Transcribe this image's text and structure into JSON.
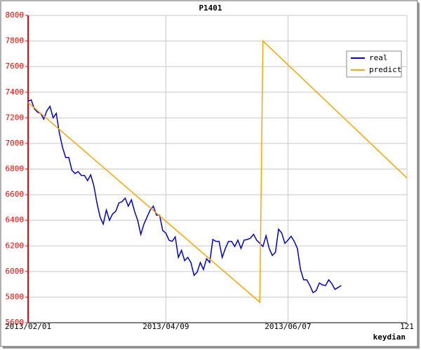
{
  "chart_data": {
    "type": "line",
    "title": "P1401",
    "xlabel": "keydian",
    "xlim": [
      0,
      121
    ],
    "xticks": [
      {
        "value": 0,
        "label": "2013/02/01"
      },
      {
        "value": 44,
        "label": "2013/04/09"
      },
      {
        "value": 83,
        "label": "2013/06/07"
      },
      121
    ],
    "ylim": [
      5600,
      8000
    ],
    "yticks": [
      5600,
      5800,
      6000,
      6200,
      6400,
      6600,
      6800,
      7000,
      7200,
      7400,
      7600,
      7800,
      8000
    ],
    "grid": true,
    "legend": "upper right",
    "axis_color": "#ff0000",
    "series": [
      {
        "name": "real",
        "color": "#0000cc",
        "x": [
          0,
          1,
          2,
          3,
          4,
          5,
          6,
          7,
          8,
          9,
          10,
          11,
          12,
          13,
          14,
          15,
          16,
          17,
          18,
          19,
          20,
          21,
          22,
          23,
          24,
          25,
          26,
          27,
          28,
          29,
          30,
          31,
          32,
          33,
          34,
          35,
          36,
          37,
          38,
          39,
          40,
          41,
          42,
          43,
          44,
          45,
          46,
          47,
          48,
          49,
          50,
          51,
          52,
          53,
          54,
          55,
          56,
          57,
          58,
          59,
          60,
          61,
          62,
          63,
          64,
          65,
          66,
          67,
          68,
          69,
          70,
          71,
          72,
          73,
          74,
          75,
          76,
          77,
          78,
          79,
          80,
          81,
          82,
          83,
          84,
          85,
          86,
          87,
          88,
          89,
          90,
          91,
          92,
          93,
          94,
          95,
          96,
          97,
          98,
          99,
          100
        ],
        "values": [
          7330,
          7340,
          7270,
          7245,
          7235,
          7190,
          7255,
          7290,
          7200,
          7235,
          7080,
          6970,
          6890,
          6890,
          6790,
          6765,
          6780,
          6750,
          6750,
          6710,
          6755,
          6670,
          6535,
          6425,
          6370,
          6480,
          6400,
          6450,
          6470,
          6535,
          6545,
          6573,
          6510,
          6560,
          6470,
          6400,
          6290,
          6370,
          6425,
          6480,
          6510,
          6440,
          6440,
          6320,
          6300,
          6245,
          6235,
          6270,
          6110,
          6165,
          6085,
          6110,
          6070,
          5970,
          5995,
          6070,
          6015,
          6100,
          6070,
          6250,
          6235,
          6235,
          6110,
          6180,
          6235,
          6235,
          6195,
          6245,
          6180,
          6245,
          6250,
          6260,
          6290,
          6245,
          6220,
          6195,
          6280,
          6180,
          6125,
          6150,
          6330,
          6300,
          6220,
          6245,
          6275,
          6235,
          6180,
          6015,
          5935,
          5935,
          5890,
          5835,
          5850,
          5910,
          5895,
          5890,
          5935,
          5905,
          5860,
          5875,
          5890
        ]
      },
      {
        "name": "predict",
        "color": "#ffa500",
        "x": [
          0,
          74,
          75,
          121
        ],
        "values": [
          7320,
          5760,
          7800,
          6730
        ]
      }
    ]
  }
}
